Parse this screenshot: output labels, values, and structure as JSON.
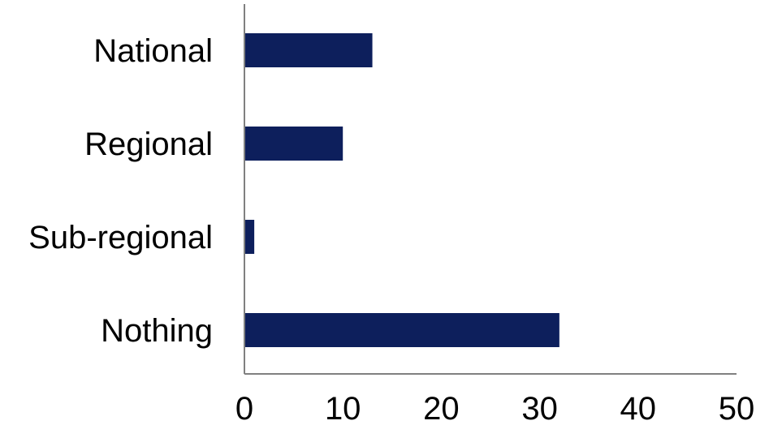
{
  "chart_data": {
    "type": "bar",
    "orientation": "horizontal",
    "categories": [
      "National",
      "Regional",
      "Sub-regional",
      "Nothing"
    ],
    "values": [
      13,
      10,
      1,
      32
    ],
    "xlim": [
      0,
      50
    ],
    "xticks": [
      "0",
      "10",
      "20",
      "30",
      "40",
      "50"
    ],
    "title": "",
    "xlabel": "",
    "ylabel": "",
    "grid": false,
    "legend": "none",
    "bar_color": "#0d1f5c"
  }
}
